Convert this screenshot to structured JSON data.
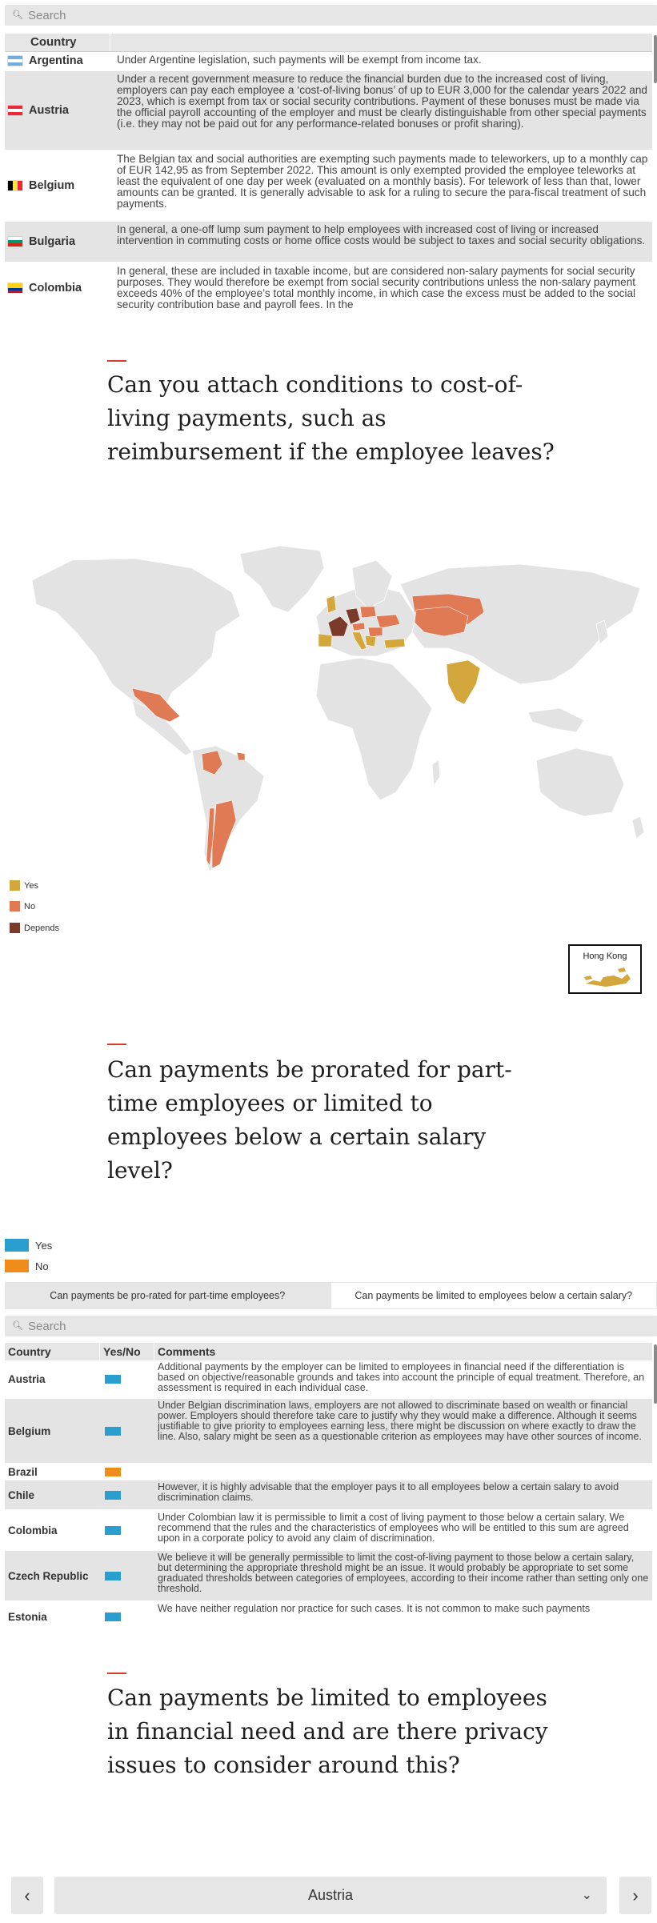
{
  "search1": {
    "placeholder": "Search"
  },
  "table1": {
    "header": {
      "country": "Country"
    },
    "rows": [
      {
        "country": "Argentina",
        "flag": "argentina-flag",
        "text": "Under Argentine legislation, such payments will be exempt from income tax."
      },
      {
        "country": "Austria",
        "flag": "austria-flag",
        "text": "Under a recent government measure to reduce the financial burden due to the increased cost of living, employers can pay each employee a ‘cost-of-living bonus’ of up to EUR 3,000 for the calendar years 2022 and 2023, which is exempt from tax or social security contributions. Payment of these bonuses must be made via the official payroll accounting of the employer and must be clearly distinguishable from other special payments (i.e. they may not be paid out for any performance-related bonuses or profit sharing)."
      },
      {
        "country": "Belgium",
        "flag": "belgium-flag",
        "text": "The Belgian tax and social authorities are exempting such payments made to teleworkers, up to a monthly cap of EUR 142,95 as from September 2022. This amount is only exempted provided the employee teleworks at least the equivalent of one day per week (evaluated on a monthly basis). For telework of less than that, lower amounts can be granted. It is generally advisable to ask for a ruling to secure the para-fiscal treatment of such payments."
      },
      {
        "country": "Bulgaria",
        "flag": "bulgaria-flag",
        "text": "In general, a one-off lump sum payment to help employees with increased cost of living or increased intervention in commuting costs or home office costs would be subject to taxes and social security obligations."
      },
      {
        "country": "Colombia",
        "flag": "colombia-flag",
        "text": "In general, these are included in taxable income, but are considered non-salary payments for social security purposes. They would therefore be exempt from social security contributions unless the non-salary payment exceeds 40% of the employee’s total monthly income, in which case the excess must be added to the social security contribution base and payroll fees. In the"
      }
    ]
  },
  "section2": {
    "title": "Can you attach conditions to cost-of-living payments, such as reimbursement if the employee leaves?"
  },
  "map": {
    "legend": [
      {
        "label": "Yes",
        "color": "#d4a73c"
      },
      {
        "label": "No",
        "color": "#e07a55"
      },
      {
        "label": "Depends",
        "color": "#7b3a2a"
      }
    ],
    "inset_title": "Hong Kong",
    "colors": {
      "land": "#e3e3e3",
      "yes": "#d4a73c",
      "no": "#e07a55",
      "depends": "#7b3a2a"
    }
  },
  "section3": {
    "title": "Can payments be prorated for part-time employees or limited to employees below a certain salary level?"
  },
  "legend2": [
    {
      "label": "Yes",
      "color": "#2a9fcf"
    },
    {
      "label": "No",
      "color": "#f08c1a"
    }
  ],
  "tabs": [
    {
      "label": "Can payments be pro-rated for part-time employees?",
      "active": false
    },
    {
      "label": "Can payments be limited to employees below a certain salary?",
      "active": true
    }
  ],
  "search2": {
    "placeholder": "Search"
  },
  "table2": {
    "header": {
      "country": "Country",
      "yes_no": "Yes/No",
      "comments": "Comments"
    },
    "rows": [
      {
        "country": "Austria",
        "answer": "yes",
        "comment": "Additional payments by the employer can be limited to employees in financial need if the differentiation is based on objective/reasonable grounds and takes into account the principle of equal treatment. Therefore, an assessment is required in each individual case."
      },
      {
        "country": "Belgium",
        "answer": "yes",
        "comment": "Under Belgian discrimination laws, employers are not allowed to discriminate based on wealth or financial power. Employers should therefore take care to justify why they would make a difference. Although it seems justifiable to give priority to employees earning less, there might be discussion on where exactly to draw the line. Also, salary might be seen as a questionable criterion as employees may have other sources of income."
      },
      {
        "country": "Brazil",
        "answer": "no",
        "comment": ""
      },
      {
        "country": "Chile",
        "answer": "yes",
        "comment": "However, it is highly advisable that the employer pays it to all employees below a certain salary to avoid discrimination claims."
      },
      {
        "country": "Colombia",
        "answer": "yes",
        "comment": "Under Colombian law it is permissible to limit a cost of living payment to those below a certain salary. We recommend that the rules and the characteristics of employees who will be entitled to this sum are agreed upon in a corporate policy to avoid any claim of discrimination."
      },
      {
        "country": "Czech Republic",
        "answer": "yes",
        "comment": "We believe it will be generally permissible to limit the cost-of-living payment to those below a certain salary, but determining the appropriate threshold might be an issue. It would probably be appropriate to set some graduated thresholds between categories of employees, according to their income rather than setting only one threshold."
      },
      {
        "country": "Estonia",
        "answer": "yes",
        "comment": "We have neither regulation nor practice for such cases. It is not common to make such payments"
      }
    ]
  },
  "section4": {
    "title": "Can payments be limited to employees in financial need and are there privacy issues to consider around this?"
  },
  "nav": {
    "selected": "Austria",
    "prev_icon": "chevron-left-icon",
    "next_icon": "chevron-right-icon"
  }
}
